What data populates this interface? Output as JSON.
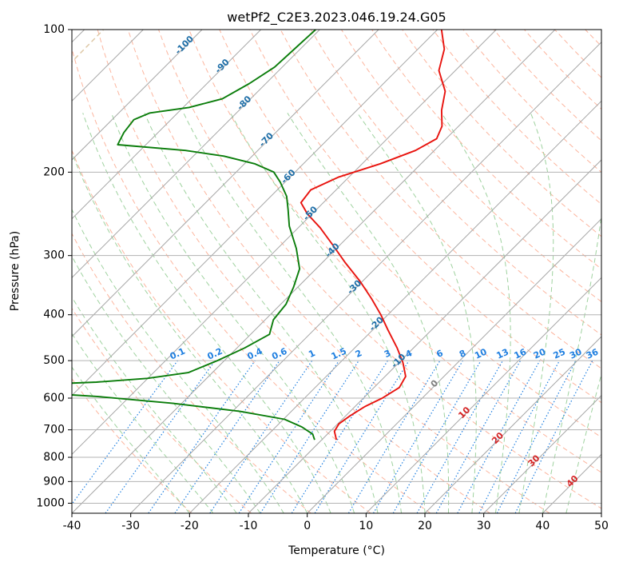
{
  "chart_data": {
    "type": "line",
    "subtype": "skew-t log-p diagram",
    "title": "wetPf2_C2E3.2023.046.19.24.G05",
    "xlabel": "Temperature (°C)",
    "ylabel": "Pressure (hPa)",
    "xlim": [
      -40,
      50
    ],
    "ylim": [
      1050,
      100
    ],
    "yscale": "log",
    "grid": true,
    "x_ticks": [
      "-40",
      "-30",
      "-20",
      "-10",
      "0",
      "10",
      "20",
      "30",
      "40",
      "50"
    ],
    "y_ticks": [
      {
        "value": 100,
        "label": "100"
      },
      {
        "value": 200,
        "label": "200"
      },
      {
        "value": 300,
        "label": "300"
      },
      {
        "value": 400,
        "label": "400"
      },
      {
        "value": 500,
        "label": "500"
      },
      {
        "value": 600,
        "label": "600"
      },
      {
        "value": 700,
        "label": "700"
      },
      {
        "value": 800,
        "label": "800"
      },
      {
        "value": 900,
        "label": "900"
      },
      {
        "value": 1000,
        "label": "1000"
      }
    ],
    "series": [
      {
        "role": "temperature",
        "color": "#e8140f",
        "points": [
          {
            "p": 735,
            "t": -7.5
          },
          {
            "p": 705,
            "t": -9.3
          },
          {
            "p": 680,
            "t": -9.8
          },
          {
            "p": 655,
            "t": -9.3
          },
          {
            "p": 625,
            "t": -8.3
          },
          {
            "p": 600,
            "t": -6.8
          },
          {
            "p": 570,
            "t": -5.7
          },
          {
            "p": 540,
            "t": -6.5
          },
          {
            "p": 505,
            "t": -9.3
          },
          {
            "p": 470,
            "t": -12.8
          },
          {
            "p": 430,
            "t": -17.5
          },
          {
            "p": 400,
            "t": -21.2
          },
          {
            "p": 370,
            "t": -25.5
          },
          {
            "p": 340,
            "t": -30.4
          },
          {
            "p": 310,
            "t": -36.2
          },
          {
            "p": 285,
            "t": -41.2
          },
          {
            "p": 262,
            "t": -46.3
          },
          {
            "p": 245,
            "t": -50.8
          },
          {
            "p": 232,
            "t": -53.8
          },
          {
            "p": 218,
            "t": -54.3
          },
          {
            "p": 205,
            "t": -51.8
          },
          {
            "p": 192,
            "t": -46.9
          },
          {
            "p": 180,
            "t": -43.2
          },
          {
            "p": 170,
            "t": -41.6
          },
          {
            "p": 160,
            "t": -42.8
          },
          {
            "p": 148,
            "t": -45.6
          },
          {
            "p": 135,
            "t": -48.2
          },
          {
            "p": 122,
            "t": -52.8
          },
          {
            "p": 110,
            "t": -55.5
          },
          {
            "p": 100,
            "t": -59.3
          }
        ]
      },
      {
        "role": "dewpoint",
        "color": "#0b7d0b",
        "points": [
          {
            "p": 735,
            "t": -11.2
          },
          {
            "p": 715,
            "t": -12.5
          },
          {
            "p": 690,
            "t": -15.6
          },
          {
            "p": 665,
            "t": -19.8
          },
          {
            "p": 640,
            "t": -28.7
          },
          {
            "p": 615,
            "t": -41.6
          },
          {
            "p": 595,
            "t": -55.6
          },
          {
            "p": 580,
            "t": -71.2
          },
          {
            "p": 572,
            "t": -76.8
          },
          {
            "p": 565,
            "t": -72.6
          },
          {
            "p": 555,
            "t": -58.1
          },
          {
            "p": 545,
            "t": -50.1
          },
          {
            "p": 530,
            "t": -44.1
          },
          {
            "p": 500,
            "t": -41.2
          },
          {
            "p": 470,
            "t": -38.7
          },
          {
            "p": 440,
            "t": -36.8
          },
          {
            "p": 410,
            "t": -38.6
          },
          {
            "p": 380,
            "t": -39.1
          },
          {
            "p": 350,
            "t": -40.7
          },
          {
            "p": 320,
            "t": -42.8
          },
          {
            "p": 290,
            "t": -46.8
          },
          {
            "p": 260,
            "t": -51.8
          },
          {
            "p": 240,
            "t": -54.8
          },
          {
            "p": 225,
            "t": -57.3
          },
          {
            "p": 210,
            "t": -60.8
          },
          {
            "p": 200,
            "t": -63.6
          },
          {
            "p": 192,
            "t": -68.3
          },
          {
            "p": 185,
            "t": -74.8
          },
          {
            "p": 180,
            "t": -82.3
          },
          {
            "p": 175,
            "t": -94.8
          },
          {
            "p": 165,
            "t": -95.8
          },
          {
            "p": 155,
            "t": -96.3
          },
          {
            "p": 150,
            "t": -94.7
          },
          {
            "p": 146,
            "t": -89.0
          },
          {
            "p": 140,
            "t": -84.8
          },
          {
            "p": 130,
            "t": -82.8
          },
          {
            "p": 120,
            "t": -81.3
          },
          {
            "p": 110,
            "t": -81.0
          },
          {
            "p": 100,
            "t": -80.7
          }
        ]
      }
    ],
    "isotherm_labels": [
      {
        "t": -100,
        "label": "-100"
      },
      {
        "t": -90,
        "label": "-90"
      },
      {
        "t": -80,
        "label": "-80"
      },
      {
        "t": -70,
        "label": "-70"
      },
      {
        "t": -60,
        "label": "-60"
      },
      {
        "t": -50,
        "label": "-50"
      },
      {
        "t": -40,
        "label": "-40"
      },
      {
        "t": -30,
        "label": "-30"
      },
      {
        "t": -20,
        "label": "-20"
      },
      {
        "t": -10,
        "label": "-10"
      },
      {
        "t": 0,
        "label": "0"
      },
      {
        "t": 10,
        "label": "10"
      },
      {
        "t": 20,
        "label": "20"
      },
      {
        "t": 30,
        "label": "30"
      },
      {
        "t": 40,
        "label": "40"
      }
    ],
    "mixing_ratio_labels": [
      {
        "w": 0.1,
        "label": "0.1"
      },
      {
        "w": 0.2,
        "label": "0.2"
      },
      {
        "w": 0.4,
        "label": "0.4"
      },
      {
        "w": 0.6,
        "label": "0.6"
      },
      {
        "w": 1,
        "label": "1"
      },
      {
        "w": 1.5,
        "label": "1.5"
      },
      {
        "w": 2,
        "label": "2"
      },
      {
        "w": 3,
        "label": "3"
      },
      {
        "w": 4,
        "label": "4"
      },
      {
        "w": 6,
        "label": "6"
      },
      {
        "w": 8,
        "label": "8"
      },
      {
        "w": 10,
        "label": "10"
      },
      {
        "w": 13,
        "label": "13"
      },
      {
        "w": 16,
        "label": "16"
      },
      {
        "w": 20,
        "label": "20"
      },
      {
        "w": 25,
        "label": "25"
      },
      {
        "w": 30,
        "label": "30"
      },
      {
        "w": 36,
        "label": "36"
      }
    ],
    "colors": {
      "isotherm": "#a6a6a6",
      "isobar": "#b3b3b3",
      "dry_adiabat": "#fcb59e",
      "moist_adiabat": "#9fd29f",
      "mixing_ratio": "#1f7fe0",
      "isotherm_label_cold": "#1f6fa8",
      "isotherm_label_warm": "#d62728",
      "isotherm_label_zero": "#808080",
      "outer_curve": "#ddc7a5"
    }
  }
}
